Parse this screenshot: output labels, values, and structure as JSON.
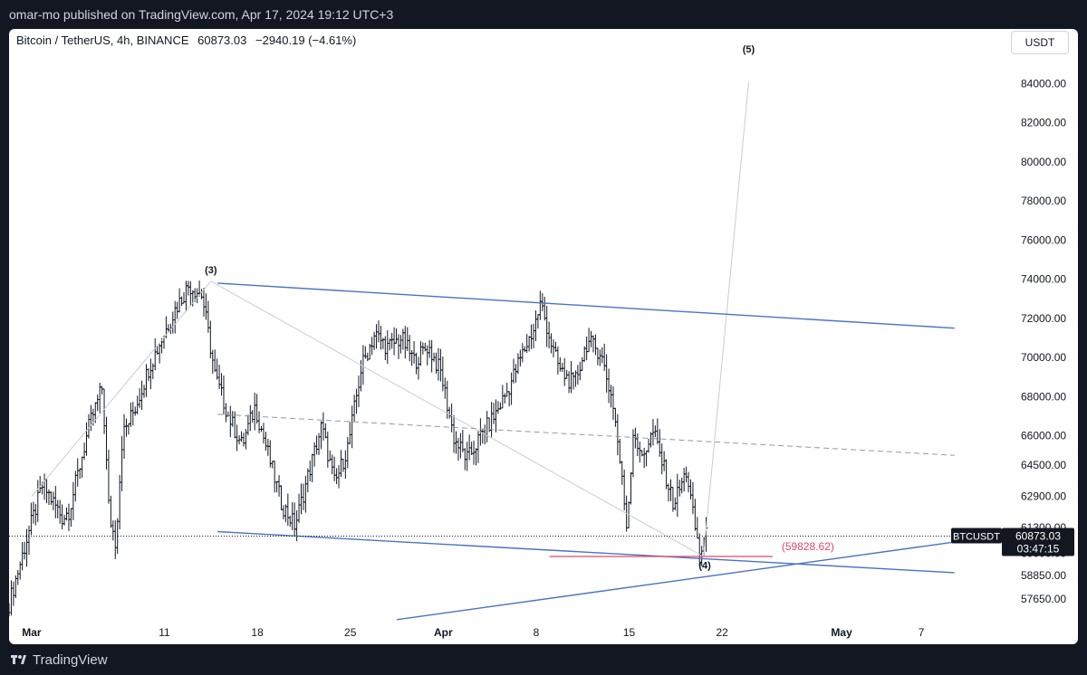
{
  "header": {
    "published": "omar-mo published on TradingView.com, Apr 17, 2024 19:12 UTC+3"
  },
  "legend": {
    "symbol": "Bitcoin / TetherUS, 4h, BINANCE",
    "price": "60873.03",
    "change": "−2940.19 (−4.61%)"
  },
  "currency_button": "USDT",
  "footer": {
    "brand": "TradingView"
  },
  "colors": {
    "candle": "#131722",
    "channel": "#4a72c4",
    "midline": "#9598a1",
    "support": "#e04766",
    "wave_line": "#c9ccd3",
    "price_tag": "#131722",
    "support_label": "#e04766"
  },
  "chart_data": {
    "type": "candlestick",
    "symbol": "BTCUSDT",
    "interval": "4h",
    "ylim": [
      56500,
      85500
    ],
    "y_ticks": [
      "84000.00",
      "82000.00",
      "80000.00",
      "78000.00",
      "76000.00",
      "74000.00",
      "72000.00",
      "70000.00",
      "68000.00",
      "66000.00",
      "64500.00",
      "62900.00",
      "61300.00",
      "60000.00",
      "58850.00",
      "57650.00"
    ],
    "x_ticks": [
      {
        "label": "Mar",
        "day": 0,
        "bold": true
      },
      {
        "label": "11",
        "day": 10
      },
      {
        "label": "18",
        "day": 17
      },
      {
        "label": "25",
        "day": 24
      },
      {
        "label": "Apr",
        "day": 31,
        "bold": true
      },
      {
        "label": "8",
        "day": 38
      },
      {
        "label": "15",
        "day": 45
      },
      {
        "label": "22",
        "day": 52
      },
      {
        "label": "May",
        "day": 61,
        "bold": true
      },
      {
        "label": "7",
        "day": 67
      }
    ],
    "x_range_days": [
      -1.7,
      73
    ],
    "last_price": {
      "symbol": "BTCUSDT",
      "value": 60873.03,
      "label": "60873.03",
      "countdown": "03:47:15"
    },
    "support_level": {
      "value": 59828.62,
      "label": "(59828.62)",
      "from_day": 39.0,
      "to_day": 55.8
    },
    "price_path": [
      [
        -1.7,
        57000
      ],
      [
        0,
        61200
      ],
      [
        1,
        63500
      ],
      [
        2.5,
        61800
      ],
      [
        3,
        62200
      ],
      [
        4.5,
        66500
      ],
      [
        5.5,
        68500
      ],
      [
        6,
        62000
      ],
      [
        6.5,
        60500
      ],
      [
        7,
        66000
      ],
      [
        8,
        67500
      ],
      [
        9,
        69500
      ],
      [
        10,
        71000
      ],
      [
        11,
        72500
      ],
      [
        12,
        73700
      ],
      [
        13,
        73200
      ],
      [
        14,
        69000
      ],
      [
        15,
        67000
      ],
      [
        16,
        65500
      ],
      [
        17,
        67500
      ],
      [
        18,
        65000
      ],
      [
        19,
        62500
      ],
      [
        20,
        61400
      ],
      [
        21,
        64000
      ],
      [
        22,
        66500
      ],
      [
        23,
        63500
      ],
      [
        24,
        65500
      ],
      [
        25,
        69500
      ],
      [
        26,
        71200
      ],
      [
        27,
        70500
      ],
      [
        28,
        71000
      ],
      [
        29,
        69800
      ],
      [
        30,
        70600
      ],
      [
        31,
        69200
      ],
      [
        32,
        65800
      ],
      [
        33,
        64800
      ],
      [
        34,
        66000
      ],
      [
        35,
        67000
      ],
      [
        36,
        68300
      ],
      [
        37,
        70000
      ],
      [
        38,
        71500
      ],
      [
        38.5,
        72800
      ],
      [
        39.5,
        70200
      ],
      [
        40,
        69300
      ],
      [
        41,
        68600
      ],
      [
        42,
        70800
      ],
      [
        43,
        70300
      ],
      [
        44,
        67500
      ],
      [
        44.5,
        64500
      ],
      [
        45,
        61300
      ],
      [
        45.5,
        66500
      ],
      [
        46,
        64800
      ],
      [
        47,
        66200
      ],
      [
        48,
        63800
      ],
      [
        48.5,
        62500
      ],
      [
        49.5,
        64200
      ],
      [
        50,
        61800
      ],
      [
        50.5,
        59900
      ],
      [
        50.9,
        60873
      ]
    ],
    "annotations": [
      {
        "label": "(3)",
        "day": 13.5,
        "price": 74300
      },
      {
        "label": "(4)",
        "day": 50.7,
        "price": 59200
      },
      {
        "label": "(5)",
        "day": 54.0,
        "price": 85600
      }
    ],
    "elliott_path": [
      [
        0,
        62900
      ],
      [
        13.5,
        73900
      ],
      [
        50.6,
        59830
      ],
      [
        54.0,
        84100
      ]
    ],
    "lines": [
      {
        "name": "upper-channel",
        "p1": [
          14,
          73800
        ],
        "p2": [
          69.5,
          71500
        ]
      },
      {
        "name": "lower-channel",
        "p1": [
          14,
          61100
        ],
        "p2": [
          69.5,
          59000
        ]
      },
      {
        "name": "mid-channel",
        "p1": [
          14,
          67100
        ],
        "p2": [
          69.5,
          65000
        ],
        "dashed": true
      },
      {
        "name": "rising-support",
        "p1": [
          27.5,
          56600
        ],
        "p2": [
          73,
          60900
        ]
      }
    ]
  }
}
